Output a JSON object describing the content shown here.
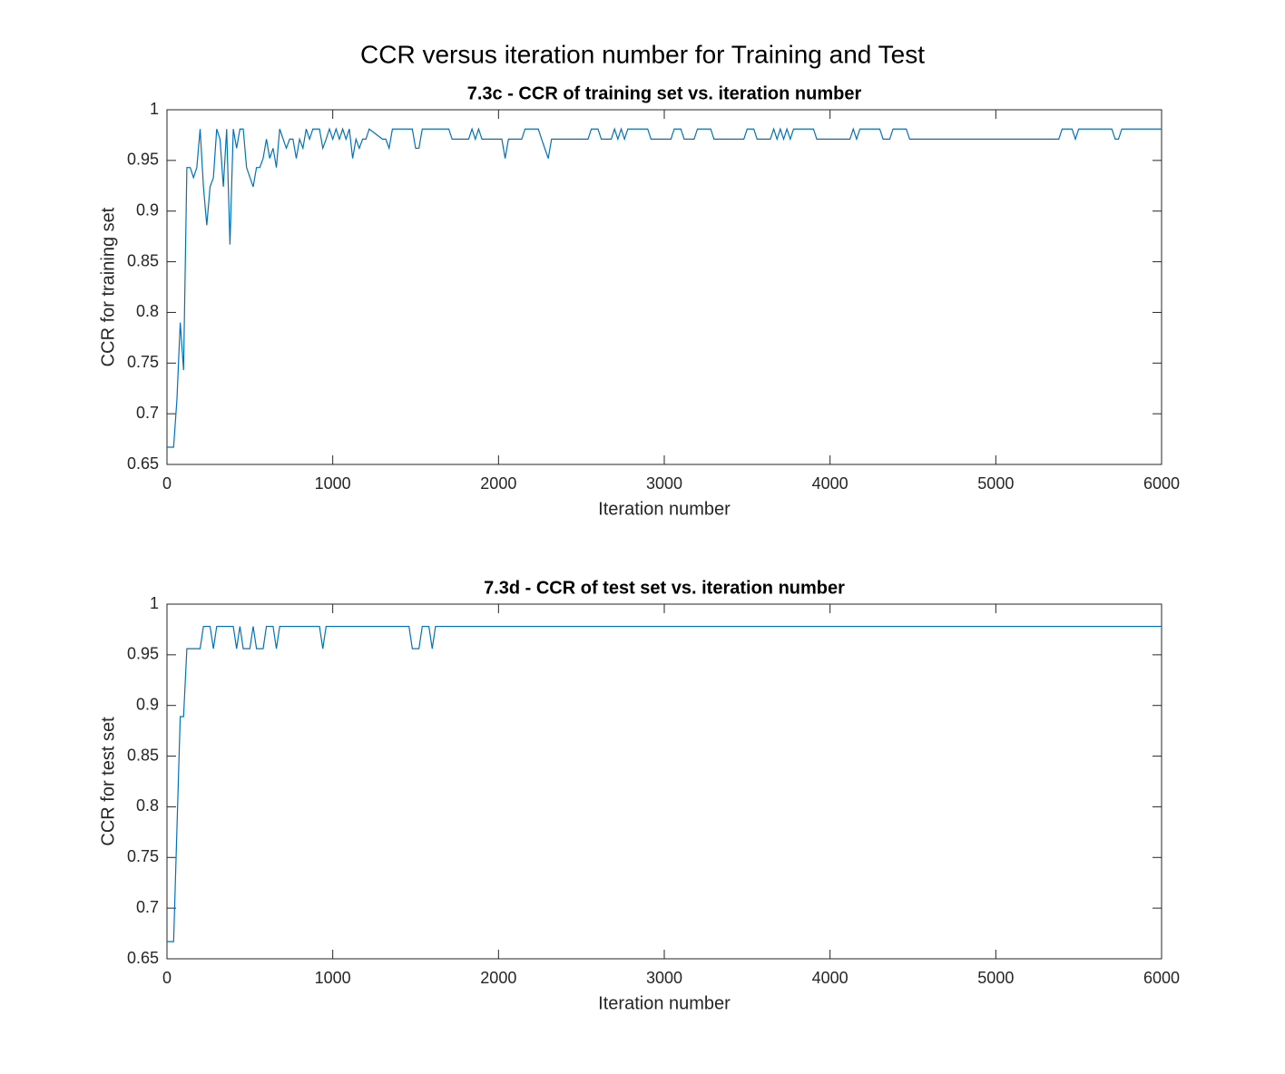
{
  "title": "CCR versus iteration number for Training and Test",
  "chart_data": [
    {
      "type": "line",
      "title": "7.3c - CCR of training set vs. iteration number",
      "x_label": "Iteration number",
      "y_label": "CCR for training set",
      "color": "#0072bd",
      "x": [
        0,
        40,
        60,
        80,
        100,
        120,
        140,
        160,
        180,
        200,
        220,
        240,
        260,
        280,
        300,
        320,
        340,
        360,
        380,
        400,
        420,
        440,
        460,
        480,
        520,
        540,
        560,
        580,
        600,
        620,
        640,
        660,
        680,
        720,
        740,
        760,
        780,
        800,
        820,
        840,
        860,
        880,
        920,
        940,
        960,
        980,
        1000,
        1020,
        1040,
        1060,
        1080,
        1100,
        1120,
        1140,
        1160,
        1180,
        1200,
        1220,
        1300,
        1320,
        1340,
        1360,
        1480,
        1500,
        1520,
        1540,
        1700,
        1720,
        1820,
        1840,
        1860,
        1880,
        1900,
        2020,
        2040,
        2060,
        2140,
        2160,
        2240,
        2260,
        2300,
        2320,
        2540,
        2560,
        2600,
        2620,
        2680,
        2700,
        2720,
        2740,
        2760,
        2780,
        2900,
        2920,
        3040,
        3060,
        3100,
        3120,
        3180,
        3200,
        3280,
        3300,
        3480,
        3500,
        3540,
        3560,
        3640,
        3660,
        3680,
        3700,
        3720,
        3740,
        3760,
        3780,
        3900,
        3920,
        4120,
        4140,
        4160,
        4180,
        4300,
        4320,
        4360,
        4380,
        4460,
        4480,
        5380,
        5400,
        5460,
        5480,
        5500,
        5700,
        5720,
        5740,
        5760,
        6000
      ],
      "values": [
        0.667,
        0.667,
        0.714,
        0.79,
        0.743,
        0.943,
        0.943,
        0.933,
        0.943,
        0.981,
        0.924,
        0.886,
        0.924,
        0.933,
        0.981,
        0.971,
        0.924,
        0.981,
        0.867,
        0.981,
        0.962,
        0.981,
        0.981,
        0.943,
        0.924,
        0.943,
        0.943,
        0.952,
        0.971,
        0.952,
        0.962,
        0.943,
        0.981,
        0.962,
        0.971,
        0.971,
        0.952,
        0.971,
        0.962,
        0.981,
        0.971,
        0.981,
        0.981,
        0.962,
        0.971,
        0.981,
        0.971,
        0.981,
        0.971,
        0.981,
        0.971,
        0.981,
        0.952,
        0.971,
        0.962,
        0.971,
        0.971,
        0.981,
        0.971,
        0.971,
        0.962,
        0.981,
        0.981,
        0.962,
        0.962,
        0.981,
        0.981,
        0.971,
        0.971,
        0.981,
        0.971,
        0.981,
        0.971,
        0.971,
        0.952,
        0.971,
        0.971,
        0.981,
        0.981,
        0.971,
        0.952,
        0.971,
        0.971,
        0.981,
        0.981,
        0.971,
        0.971,
        0.981,
        0.971,
        0.981,
        0.971,
        0.981,
        0.981,
        0.971,
        0.971,
        0.981,
        0.981,
        0.971,
        0.971,
        0.981,
        0.981,
        0.971,
        0.971,
        0.981,
        0.981,
        0.971,
        0.971,
        0.981,
        0.971,
        0.981,
        0.971,
        0.981,
        0.971,
        0.981,
        0.981,
        0.971,
        0.971,
        0.981,
        0.971,
        0.981,
        0.981,
        0.971,
        0.971,
        0.981,
        0.981,
        0.971,
        0.971,
        0.981,
        0.981,
        0.971,
        0.981,
        0.981,
        0.971,
        0.971,
        0.981,
        0.981
      ],
      "xlim": [
        0,
        6000
      ],
      "xticks": [
        0,
        1000,
        2000,
        3000,
        4000,
        5000,
        6000
      ],
      "ylim": [
        0.65,
        1
      ],
      "yticks": [
        0.65,
        0.7,
        0.75,
        0.8,
        0.85,
        0.9,
        0.95,
        1
      ]
    },
    {
      "type": "line",
      "title": "7.3d - CCR of test set vs. iteration number",
      "x_label": "Iteration number",
      "y_label": "CCR for test set",
      "color": "#0072bd",
      "x": [
        0,
        40,
        60,
        80,
        100,
        120,
        200,
        220,
        260,
        280,
        300,
        400,
        420,
        440,
        460,
        500,
        520,
        540,
        580,
        600,
        640,
        660,
        680,
        920,
        940,
        960,
        1460,
        1480,
        1520,
        1540,
        1580,
        1600,
        1620,
        6000
      ],
      "values": [
        0.667,
        0.667,
        0.778,
        0.889,
        0.889,
        0.956,
        0.956,
        0.978,
        0.978,
        0.956,
        0.978,
        0.978,
        0.956,
        0.978,
        0.956,
        0.956,
        0.978,
        0.956,
        0.956,
        0.978,
        0.978,
        0.956,
        0.978,
        0.978,
        0.956,
        0.978,
        0.978,
        0.956,
        0.956,
        0.978,
        0.978,
        0.956,
        0.978,
        0.978
      ],
      "xlim": [
        0,
        6000
      ],
      "xticks": [
        0,
        1000,
        2000,
        3000,
        4000,
        5000,
        6000
      ],
      "ylim": [
        0.65,
        1
      ],
      "yticks": [
        0.65,
        0.7,
        0.75,
        0.8,
        0.85,
        0.9,
        0.95,
        1
      ]
    }
  ]
}
